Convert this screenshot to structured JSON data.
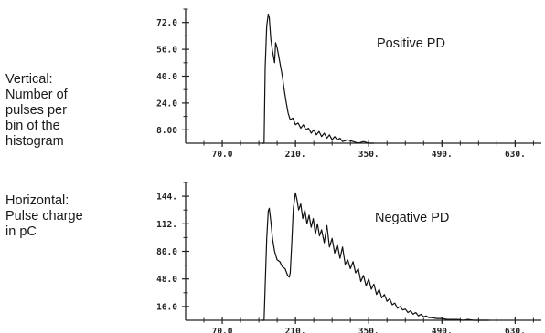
{
  "side_labels": {
    "vertical": "Vertical:\nNumber of\npulses per\nbin of the\nhistogram",
    "horizontal": "Horizontal:\nPulse charge\nin pC"
  },
  "chart_data": [
    {
      "type": "line",
      "title": "Positive PD",
      "xlabel": "",
      "ylabel": "",
      "x_ticks": [
        "70.0",
        "210.",
        "350.",
        "490.",
        "630."
      ],
      "y_ticks": [
        "8.00",
        "24.0",
        "40.0",
        "56.0",
        "72.0"
      ],
      "xlim": [
        0,
        680
      ],
      "ylim": [
        0,
        80
      ],
      "grid": false,
      "x": [
        145,
        150,
        152,
        155,
        158,
        160,
        163,
        166,
        170,
        172,
        175,
        178,
        182,
        185,
        188,
        192,
        196,
        200,
        205,
        210,
        215,
        220,
        225,
        230,
        235,
        240,
        245,
        250,
        255,
        260,
        265,
        270,
        275,
        280,
        285,
        290,
        295,
        300,
        310,
        320,
        330,
        340,
        350,
        360
      ],
      "y": [
        0,
        0,
        45,
        70,
        77,
        75,
        62,
        55,
        48,
        60,
        57,
        52,
        45,
        40,
        33,
        25,
        18,
        14,
        15,
        11,
        12,
        9,
        11,
        8,
        9,
        6,
        8,
        5,
        7,
        4,
        6,
        3,
        5,
        2,
        4,
        2,
        3,
        1,
        2,
        1,
        0,
        1,
        0,
        0
      ]
    },
    {
      "type": "line",
      "title": "Negative PD",
      "xlabel": "",
      "ylabel": "",
      "x_ticks": [
        "70.0",
        "210.",
        "350.",
        "490.",
        "630."
      ],
      "y_ticks": [
        "16.0",
        "48.0",
        "80.0",
        "112.",
        "144."
      ],
      "xlim": [
        0,
        680
      ],
      "ylim": [
        0,
        160
      ],
      "grid": false,
      "x": [
        145,
        150,
        152,
        155,
        158,
        160,
        163,
        166,
        170,
        175,
        180,
        185,
        190,
        195,
        198,
        200,
        203,
        206,
        210,
        213,
        216,
        220,
        224,
        228,
        232,
        236,
        240,
        244,
        248,
        252,
        256,
        260,
        265,
        270,
        275,
        280,
        285,
        290,
        295,
        300,
        305,
        310,
        315,
        320,
        325,
        330,
        335,
        340,
        345,
        350,
        355,
        360,
        365,
        370,
        375,
        380,
        385,
        390,
        395,
        400,
        405,
        410,
        415,
        420,
        425,
        430,
        435,
        440,
        445,
        450,
        455,
        460,
        465,
        470,
        480,
        490,
        500,
        510,
        520,
        530,
        540,
        550,
        560,
        580
      ],
      "y": [
        0,
        0,
        40,
        95,
        127,
        130,
        115,
        95,
        80,
        70,
        68,
        62,
        60,
        52,
        50,
        55,
        90,
        130,
        148,
        140,
        128,
        135,
        118,
        128,
        112,
        122,
        108,
        118,
        100,
        112,
        98,
        105,
        90,
        110,
        85,
        95,
        78,
        88,
        72,
        85,
        65,
        70,
        60,
        68,
        55,
        60,
        45,
        52,
        40,
        48,
        36,
        42,
        30,
        36,
        26,
        30,
        22,
        25,
        18,
        20,
        14,
        16,
        12,
        13,
        9,
        11,
        7,
        9,
        5,
        7,
        4,
        5,
        3,
        3,
        2,
        2,
        1,
        1,
        1,
        0,
        1,
        0,
        0,
        0
      ]
    }
  ]
}
